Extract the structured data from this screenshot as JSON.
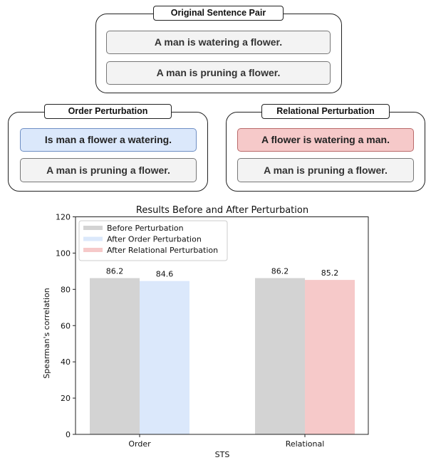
{
  "diagram": {
    "original": {
      "title": "Original Sentence Pair",
      "sentence_1": "A man is watering a flower.",
      "sentence_2": "A man is pruning a flower."
    },
    "order": {
      "title": "Order Perturbation",
      "sentence_1": "Is man a flower a watering.",
      "sentence_2": "A man is pruning a flower."
    },
    "relational": {
      "title": "Relational Perturbation",
      "sentence_1": "A flower is watering a man.",
      "sentence_2": "A man is pruning a flower."
    }
  },
  "chart_data": {
    "type": "bar",
    "title": "Results Before and After Perturbation",
    "xlabel": "STS",
    "ylabel": "Spearman's correlation",
    "ylim": [
      0,
      120
    ],
    "yticks": [
      "0",
      "20",
      "40",
      "60",
      "80",
      "100",
      "120"
    ],
    "categories": [
      "Order",
      "Relational"
    ],
    "series": [
      {
        "name": "Before Perturbation",
        "color": "#d3d3d3",
        "values": [
          86.2,
          86.2
        ],
        "labels": [
          "86.2",
          "86.2"
        ]
      },
      {
        "name": "After Order Perturbation",
        "color": "#dbe8fb",
        "values": [
          84.6,
          null
        ],
        "labels": [
          "84.6",
          ""
        ]
      },
      {
        "name": "After Relational Perturbation",
        "color": "#f6c9c9",
        "values": [
          null,
          85.2
        ],
        "labels": [
          "",
          "85.2"
        ]
      }
    ],
    "legend": "top-left",
    "grid": false
  }
}
